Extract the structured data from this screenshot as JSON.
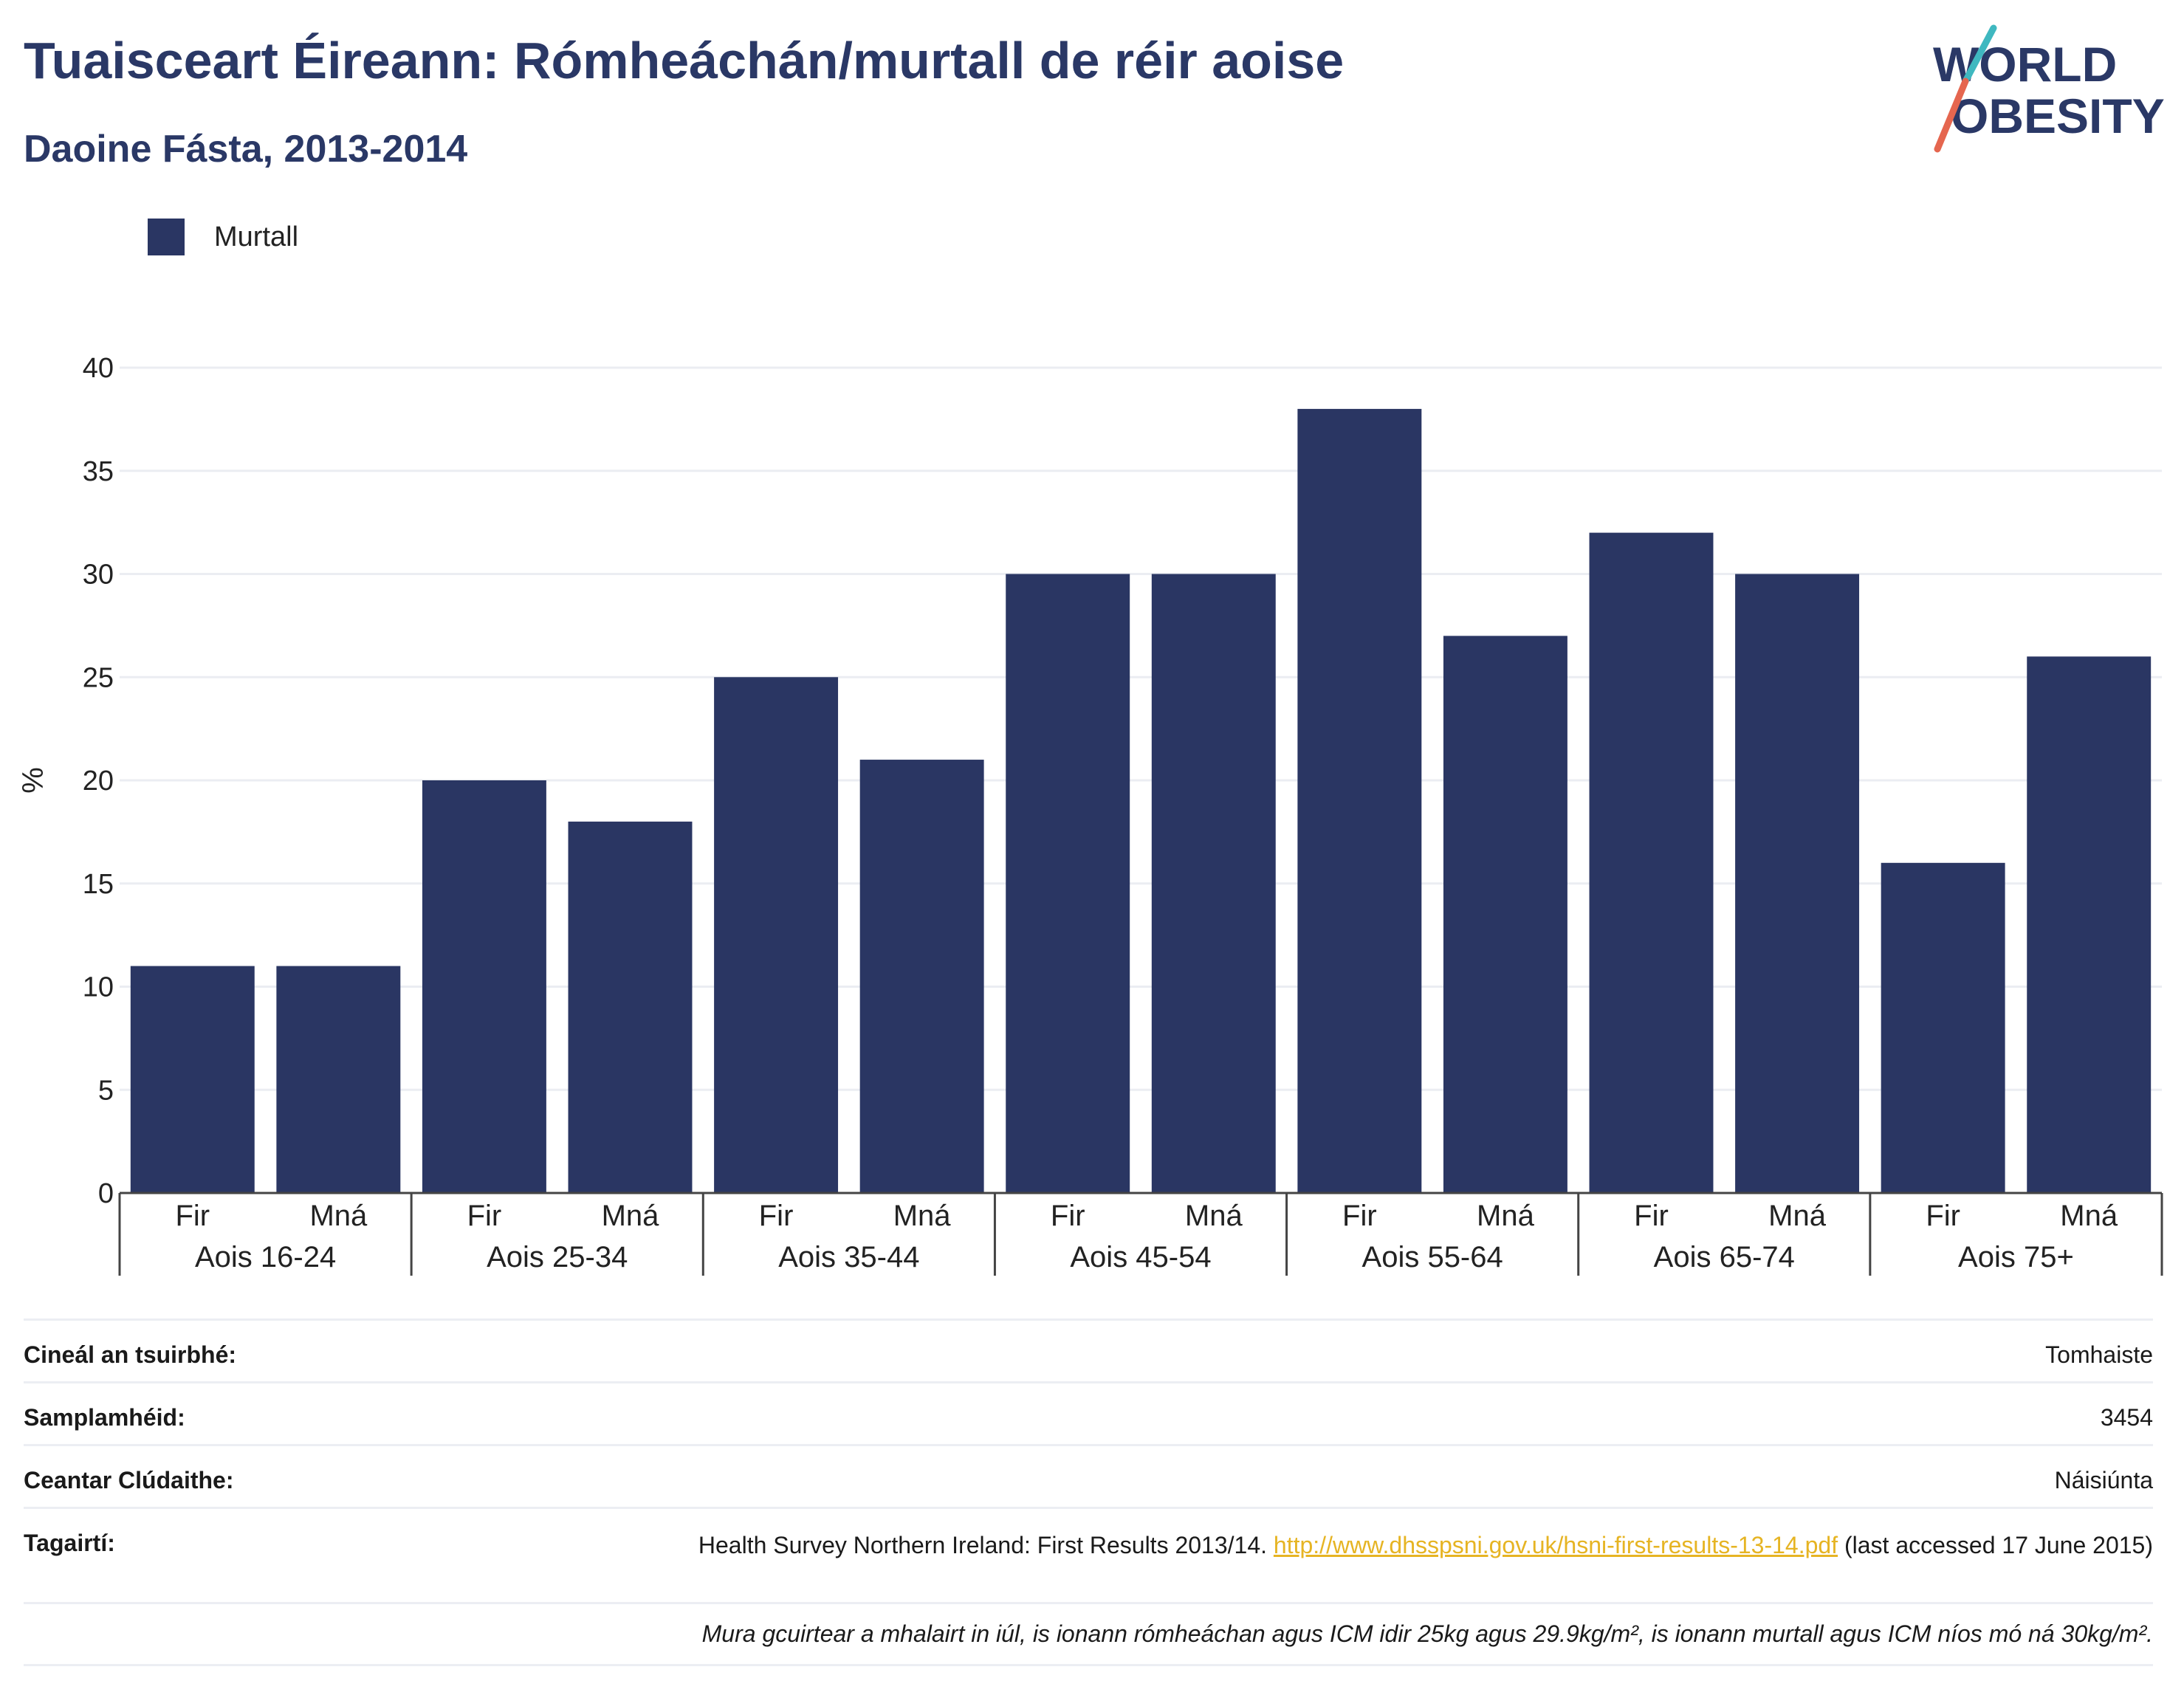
{
  "title": "Tuaisceart Éireann: Rómheáchán/murtall de réir aoise",
  "subtitle": "Daoine Fásta, 2013-2014",
  "logo": {
    "line1": "WORLD",
    "line2": "OBESITY"
  },
  "legend": {
    "label": "Murtall",
    "color": "#2a3663"
  },
  "chart_data": {
    "type": "bar",
    "ylabel": "%",
    "ylim": [
      0,
      40
    ],
    "yticks": [
      0,
      5,
      10,
      15,
      20,
      25,
      30,
      35,
      40
    ],
    "grid": true,
    "groups": [
      "Aois 16-24",
      "Aois 25-34",
      "Aois 35-44",
      "Aois 45-54",
      "Aois 55-64",
      "Aois 65-74",
      "Aois 75+"
    ],
    "subcategories": [
      "Fir",
      "Mná"
    ],
    "series": [
      {
        "name": "Murtall",
        "color": "#2a3663",
        "values": [
          11,
          11,
          20,
          18,
          25,
          21,
          30,
          30,
          38,
          27,
          32,
          30,
          16,
          26
        ]
      }
    ]
  },
  "meta": {
    "survey_type_label": "Cineál an tsuirbhé:",
    "survey_type_value": "Tomhaiste",
    "sample_label": "Samplamhéid:",
    "sample_value": "3454",
    "area_label": "Ceantar Clúdaithe:",
    "area_value": "Náisiúnta",
    "ref_label": "Tagairtí:",
    "ref_text_before": "Health Survey Northern Ireland: First Results 2013/14. ",
    "ref_link": "http://www.dhsspsni.gov.uk/hsni-first-results-13-14.pdf",
    "ref_text_after": " (last accessed 17 June 2015)",
    "note": "Mura gcuirtear a mhalairt in iúl, is ionann rómheáchan agus ICM idir 25kg agus 29.9kg/m², is ionann murtall agus ICM níos mó ná 30kg/m²."
  }
}
